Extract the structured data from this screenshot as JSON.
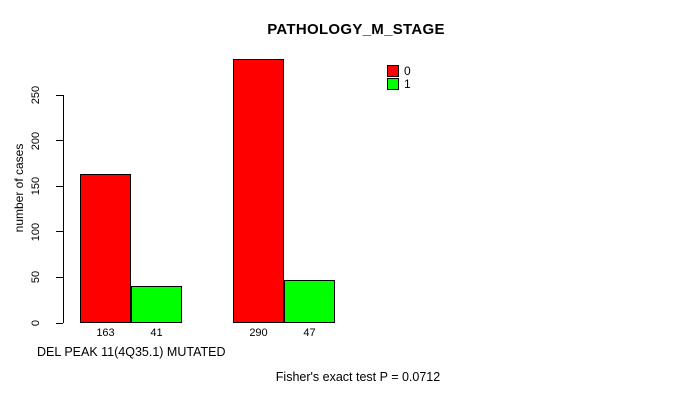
{
  "chart_data": {
    "type": "bar",
    "title": "PATHOLOGY_M_STAGE",
    "xlabel": "DEL PEAK 11(4Q35.1) MUTATED",
    "ylabel": "number of cases",
    "series": [
      {
        "name": "0",
        "color": "#ff0000",
        "values": [
          163,
          290
        ]
      },
      {
        "name": "1",
        "color": "#00ff00",
        "values": [
          41,
          47
        ]
      }
    ],
    "bar_value_labels": [
      "163",
      "41",
      "290",
      "47"
    ],
    "yticks": [
      0,
      50,
      100,
      150,
      200,
      250
    ],
    "ylim": [
      0,
      295
    ],
    "grid": false,
    "legend": {
      "position": "top-right",
      "entries": [
        {
          "label": "0",
          "color": "#ff0000"
        },
        {
          "label": "1",
          "color": "#00ff00"
        }
      ]
    },
    "annotation": "Fisher's exact test P = 0.0712"
  },
  "colors": {
    "background": "#ffffff",
    "axis": "#000000",
    "bar_border": "#000000"
  }
}
